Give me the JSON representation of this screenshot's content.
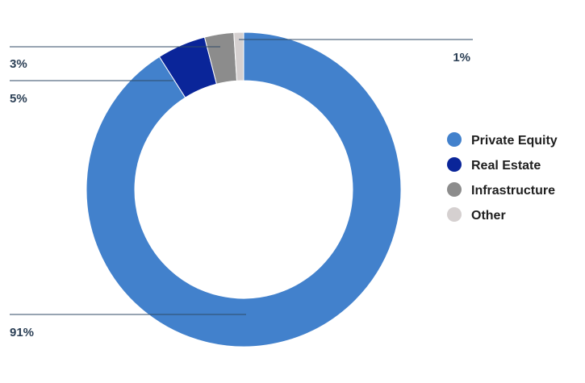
{
  "chart_data": {
    "type": "pie",
    "variant": "donut",
    "categories": [
      "Private Equity",
      "Real Estate",
      "Infrastructure",
      "Other"
    ],
    "values": [
      91,
      5,
      3,
      1
    ],
    "labels": [
      "91%",
      "5%",
      "3%",
      "1%"
    ],
    "colors": [
      "#4281cc",
      "#0a2599",
      "#8c8c8c",
      "#d5d0d0"
    ],
    "legend_position": "right",
    "title": ""
  }
}
